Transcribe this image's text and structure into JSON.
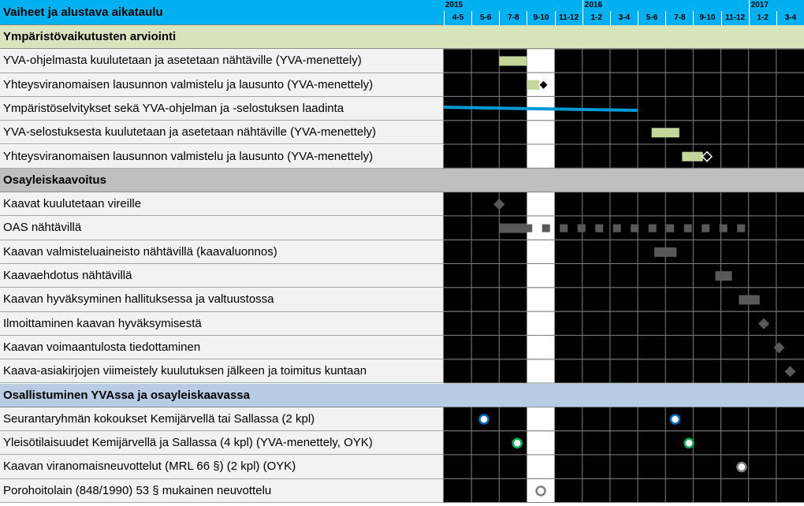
{
  "header": {
    "title": "Vaiheet ja alustava aikataulu",
    "years": [
      "2015",
      "2016",
      "2017"
    ],
    "periods": [
      "4-5",
      "5-6",
      "7-8",
      "9-10",
      "11-12",
      "1-2",
      "3-4",
      "5-6",
      "7-8",
      "9-10",
      "11-12",
      "1-2",
      "3-4"
    ]
  },
  "colors": {
    "header_bg": "#00b0f0",
    "section_yva": "#d8e4bc",
    "section_oyk": "#bfbfbf",
    "section_osall": "#b8cce4",
    "grid_bg": "#000000",
    "highlight_column": "#ffffff",
    "bar_green": "#c4d79b",
    "bar_gray": "#595959",
    "line_blue": "#0099d6"
  },
  "chart_data": {
    "type": "gantt",
    "title": "Vaiheet ja alustava aikataulu",
    "highlight_period_index": 3,
    "groups": [
      {
        "name": "Ympäristövaikutusten arviointi",
        "color": "#d8e4bc",
        "tasks": [
          {
            "label": "YVA-ohjelmasta kuulutetaan ja asetetaan nähtäville (YVA-menettely)",
            "marks": [
              {
                "kind": "bar",
                "start": 2.0,
                "end": 3.0,
                "color": "#c4d79b"
              }
            ]
          },
          {
            "label": "Yhteysviranomaisen lausunnon valmistelu ja lausunto (YVA-menettely)",
            "marks": [
              {
                "kind": "bar",
                "start": 3.0,
                "end": 3.45,
                "color": "#c4d79b"
              },
              {
                "kind": "diamond",
                "at": 3.6,
                "fill": "#000000",
                "stroke": "#ffffff"
              }
            ]
          },
          {
            "label": "Ympäristöselvitykset sekä YVA-ohjelman ja -selostuksen laadinta",
            "marks": [
              {
                "kind": "line",
                "start": 0.0,
                "end": 7.0,
                "color": "#0099d6"
              }
            ]
          },
          {
            "label": "YVA-selostuksesta kuulutetaan ja asetetaan nähtäville (YVA-menettely)",
            "marks": [
              {
                "kind": "bar",
                "start": 7.5,
                "end": 8.5,
                "color": "#c4d79b"
              }
            ]
          },
          {
            "label": "Yhteysviranomaisen lausunnon valmistelu ja lausunto (YVA-menettely)",
            "marks": [
              {
                "kind": "bar",
                "start": 8.6,
                "end": 9.35,
                "color": "#c4d79b"
              },
              {
                "kind": "diamond",
                "at": 9.5,
                "fill": "#000000",
                "stroke": "#ffffff"
              }
            ]
          }
        ]
      },
      {
        "name": "Osayleiskaavoitus",
        "color": "#bfbfbf",
        "tasks": [
          {
            "label": "Kaavat kuulutetaan vireille",
            "marks": [
              {
                "kind": "diamond",
                "at": 2.0,
                "fill": "#595959",
                "stroke": "#595959"
              }
            ]
          },
          {
            "label": "OAS nähtävillä",
            "marks": [
              {
                "kind": "bar",
                "start": 2.0,
                "end": 3.0,
                "color": "#595959"
              },
              {
                "kind": "dashes",
                "start": 3.05,
                "end": 11.0,
                "color": "#595959"
              }
            ]
          },
          {
            "label": "Kaavan valmisteluaineisto nähtävillä (kaavaluonnos)",
            "marks": [
              {
                "kind": "bar",
                "start": 7.6,
                "end": 8.4,
                "color": "#595959"
              }
            ]
          },
          {
            "label": "Kaavaehdotus nähtävillä",
            "marks": [
              {
                "kind": "bar",
                "start": 9.8,
                "end": 10.4,
                "color": "#595959"
              }
            ]
          },
          {
            "label": "Kaavan hyväksyminen hallituksessa ja valtuustossa",
            "marks": [
              {
                "kind": "bar",
                "start": 10.65,
                "end": 11.4,
                "color": "#595959"
              }
            ]
          },
          {
            "label": "Ilmoittaminen kaavan hyväksymisestä",
            "marks": [
              {
                "kind": "diamond",
                "at": 11.55,
                "fill": "#595959",
                "stroke": "#595959"
              }
            ]
          },
          {
            "label": "Kaavan voimaantulosta tiedottaminen",
            "marks": [
              {
                "kind": "diamond",
                "at": 12.1,
                "fill": "#595959",
                "stroke": "#595959"
              }
            ]
          },
          {
            "label": "Kaava-asiakirjojen viimeistely kuulutuksen jälkeen ja toimitus kuntaan",
            "marks": [
              {
                "kind": "diamond",
                "at": 12.5,
                "fill": "#595959",
                "stroke": "#595959"
              }
            ]
          }
        ]
      },
      {
        "name": "Osallistuminen YVAssa ja osayleiskaavassa",
        "color": "#b8cce4",
        "tasks": [
          {
            "label": "Seurantaryhmän kokoukset Kemijärvellä tai Sallassa (2 kpl)",
            "marks": [
              {
                "kind": "circle",
                "at": 1.45,
                "fill": "#ffffff",
                "stroke": "#0070c0"
              },
              {
                "kind": "circle",
                "at": 8.35,
                "fill": "#ffffff",
                "stroke": "#0070c0"
              }
            ]
          },
          {
            "label": "Yleisötilaisuudet Kemijärvellä ja Sallassa (4 kpl) (YVA-menettely, OYK)",
            "marks": [
              {
                "kind": "circle",
                "at": 2.65,
                "fill": "#ffffff",
                "stroke": "#00b050"
              },
              {
                "kind": "circle",
                "at": 8.85,
                "fill": "#ffffff",
                "stroke": "#00b050"
              }
            ]
          },
          {
            "label": "Kaavan viranomaisneuvottelut (MRL 66 §) (2 kpl) (OYK)",
            "marks": [
              {
                "kind": "circle",
                "at": 10.75,
                "fill": "#ffffff",
                "stroke": "#7f7f7f"
              }
            ]
          },
          {
            "label": "Porohoitolain (848/1990) 53 § mukainen neuvottelu",
            "marks": [
              {
                "kind": "circle",
                "at": 3.5,
                "fill": "#ffffff",
                "stroke": "#7f7f7f"
              }
            ]
          }
        ]
      }
    ]
  }
}
